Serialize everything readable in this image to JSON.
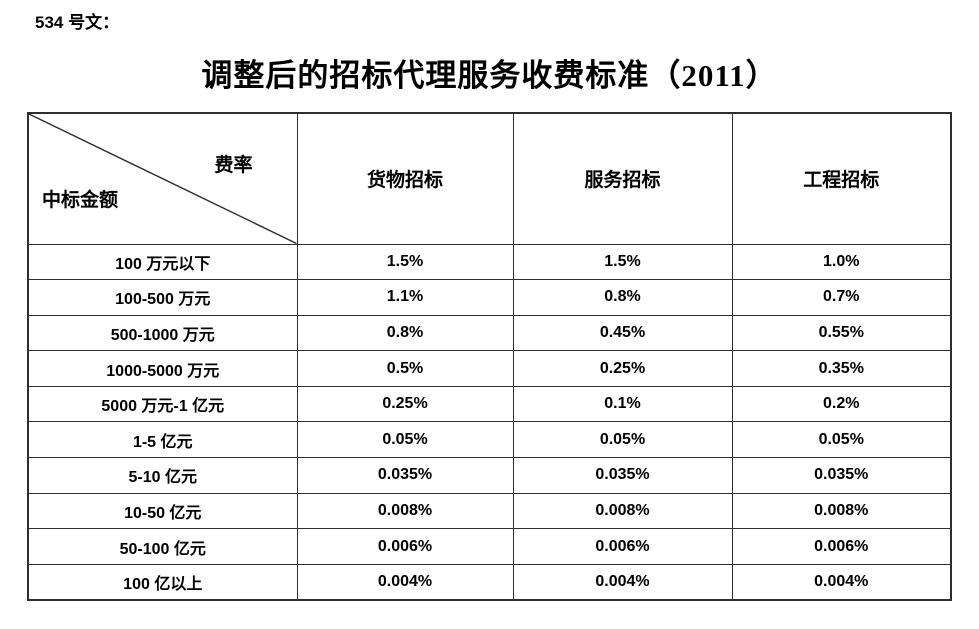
{
  "page": {
    "doc_ref": "534 号文：",
    "title": "调整后的招标代理服务收费标准（2011）"
  },
  "table": {
    "corner": {
      "top_right": "费率",
      "bottom_left": "中标金额"
    },
    "columns": [
      "货物招标",
      "服务招标",
      "工程招标"
    ],
    "rows": [
      {
        "label": "100 万元以下",
        "values": [
          "1.5%",
          "1.5%",
          "1.0%"
        ]
      },
      {
        "label": "100-500 万元",
        "values": [
          "1.1%",
          "0.8%",
          "0.7%"
        ]
      },
      {
        "label": "500-1000 万元",
        "values": [
          "0.8%",
          "0.45%",
          "0.55%"
        ]
      },
      {
        "label": "1000-5000 万元",
        "values": [
          "0.5%",
          "0.25%",
          "0.35%"
        ]
      },
      {
        "label": "5000 万元-1 亿元",
        "values": [
          "0.25%",
          "0.1%",
          "0.2%"
        ]
      },
      {
        "label": "1-5 亿元",
        "values": [
          "0.05%",
          "0.05%",
          "0.05%"
        ]
      },
      {
        "label": "5-10 亿元",
        "values": [
          "0.035%",
          "0.035%",
          "0.035%"
        ]
      },
      {
        "label": "10-50 亿元",
        "values": [
          "0.008%",
          "0.008%",
          "0.008%"
        ]
      },
      {
        "label": "50-100 亿元",
        "values": [
          "0.006%",
          "0.006%",
          "0.006%"
        ]
      },
      {
        "label": "100 亿以上",
        "values": [
          "0.004%",
          "0.004%",
          "0.004%"
        ]
      }
    ],
    "border_color": "#2e2e2e",
    "text_color": "#000000"
  }
}
